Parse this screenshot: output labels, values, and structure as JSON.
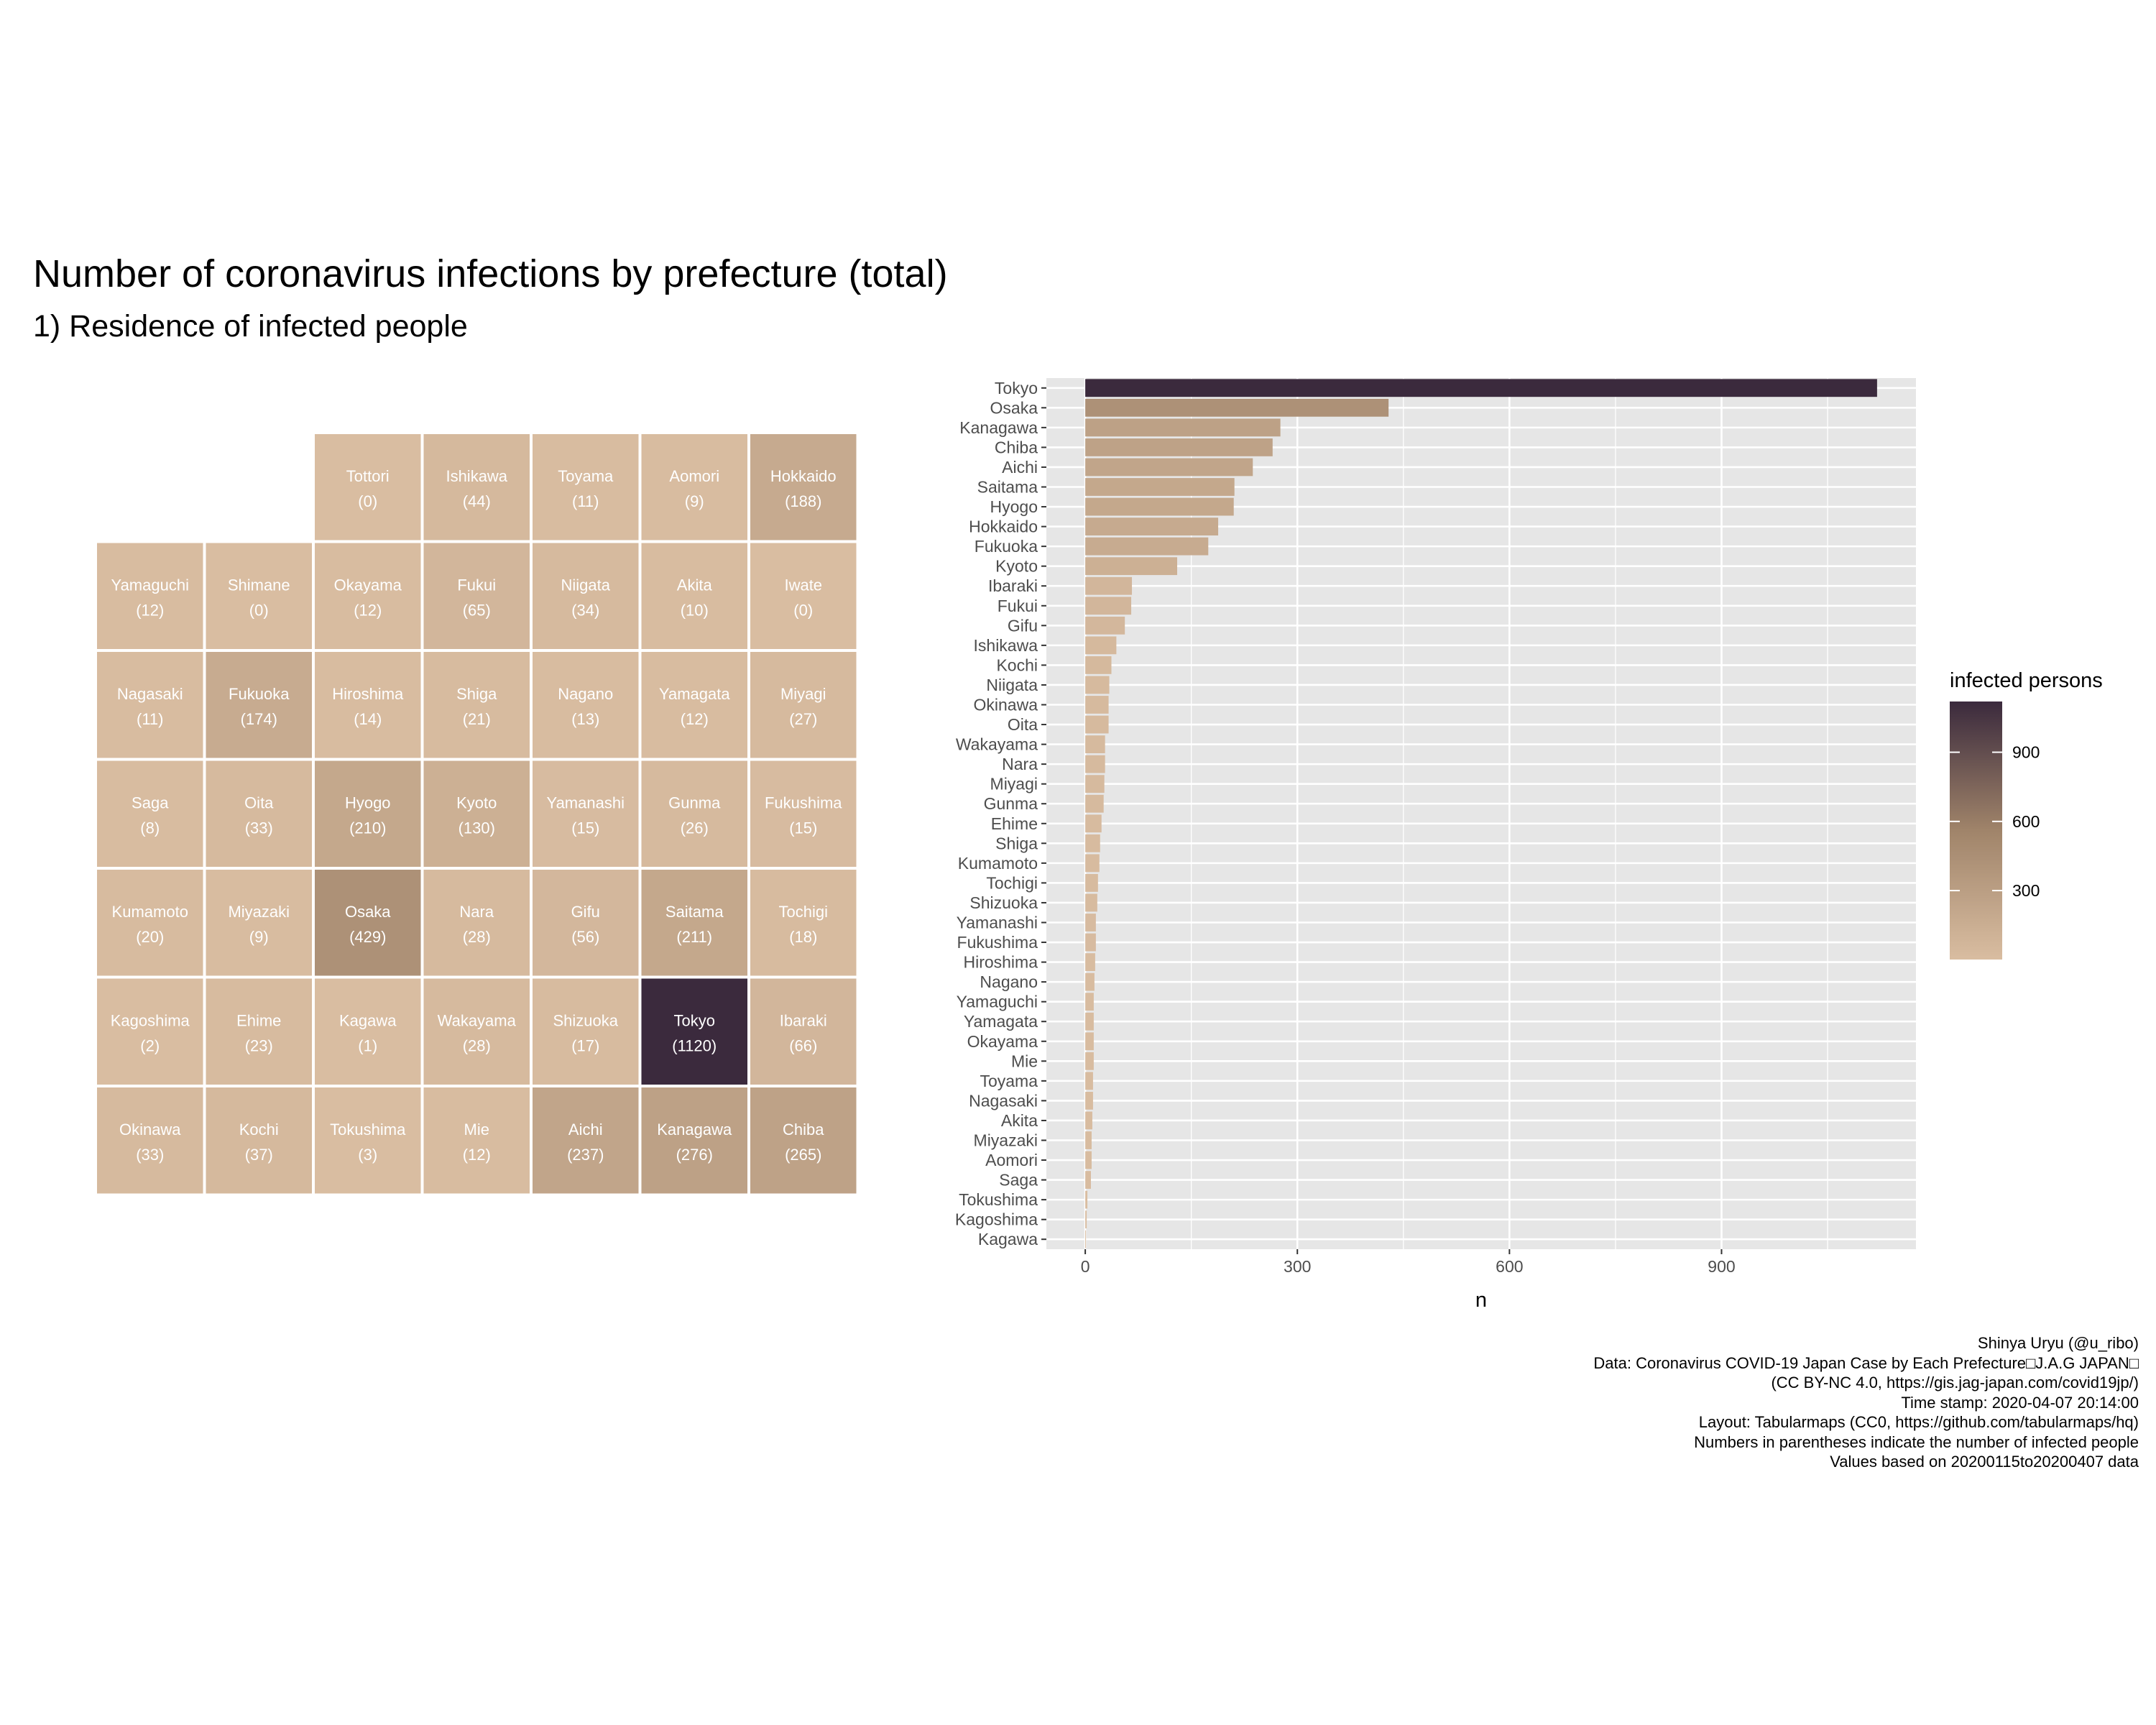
{
  "title": "Number of coronavirus infections by prefecture (total)",
  "subtitle": "1) Residence of infected people",
  "colors": {
    "low": "#d9bda1",
    "mid": "#a0846a",
    "high": "#3b2a3d",
    "panel_bg": "#e6e6e6",
    "grid": "#ffffff"
  },
  "chart_data": [
    {
      "type": "heatmap",
      "layout": "tabular map",
      "tiles": [
        {
          "name": "Tottori",
          "value": 0,
          "row": 0,
          "col": 2
        },
        {
          "name": "Ishikawa",
          "value": 44,
          "row": 0,
          "col": 3
        },
        {
          "name": "Toyama",
          "value": 11,
          "row": 0,
          "col": 4
        },
        {
          "name": "Aomori",
          "value": 9,
          "row": 0,
          "col": 5
        },
        {
          "name": "Hokkaido",
          "value": 188,
          "row": 0,
          "col": 6
        },
        {
          "name": "Yamaguchi",
          "value": 12,
          "row": 1,
          "col": 0
        },
        {
          "name": "Shimane",
          "value": 0,
          "row": 1,
          "col": 1
        },
        {
          "name": "Okayama",
          "value": 12,
          "row": 1,
          "col": 2
        },
        {
          "name": "Fukui",
          "value": 65,
          "row": 1,
          "col": 3
        },
        {
          "name": "Niigata",
          "value": 34,
          "row": 1,
          "col": 4
        },
        {
          "name": "Akita",
          "value": 10,
          "row": 1,
          "col": 5
        },
        {
          "name": "Iwate",
          "value": 0,
          "row": 1,
          "col": 6
        },
        {
          "name": "Nagasaki",
          "value": 11,
          "row": 2,
          "col": 0
        },
        {
          "name": "Fukuoka",
          "value": 174,
          "row": 2,
          "col": 1
        },
        {
          "name": "Hiroshima",
          "value": 14,
          "row": 2,
          "col": 2
        },
        {
          "name": "Shiga",
          "value": 21,
          "row": 2,
          "col": 3
        },
        {
          "name": "Nagano",
          "value": 13,
          "row": 2,
          "col": 4
        },
        {
          "name": "Yamagata",
          "value": 12,
          "row": 2,
          "col": 5
        },
        {
          "name": "Miyagi",
          "value": 27,
          "row": 2,
          "col": 6
        },
        {
          "name": "Saga",
          "value": 8,
          "row": 3,
          "col": 0
        },
        {
          "name": "Oita",
          "value": 33,
          "row": 3,
          "col": 1
        },
        {
          "name": "Hyogo",
          "value": 210,
          "row": 3,
          "col": 2
        },
        {
          "name": "Kyoto",
          "value": 130,
          "row": 3,
          "col": 3
        },
        {
          "name": "Yamanashi",
          "value": 15,
          "row": 3,
          "col": 4
        },
        {
          "name": "Gunma",
          "value": 26,
          "row": 3,
          "col": 5
        },
        {
          "name": "Fukushima",
          "value": 15,
          "row": 3,
          "col": 6
        },
        {
          "name": "Kumamoto",
          "value": 20,
          "row": 4,
          "col": 0
        },
        {
          "name": "Miyazaki",
          "value": 9,
          "row": 4,
          "col": 1
        },
        {
          "name": "Osaka",
          "value": 429,
          "row": 4,
          "col": 2
        },
        {
          "name": "Nara",
          "value": 28,
          "row": 4,
          "col": 3
        },
        {
          "name": "Gifu",
          "value": 56,
          "row": 4,
          "col": 4
        },
        {
          "name": "Saitama",
          "value": 211,
          "row": 4,
          "col": 5
        },
        {
          "name": "Tochigi",
          "value": 18,
          "row": 4,
          "col": 6
        },
        {
          "name": "Kagoshima",
          "value": 2,
          "row": 5,
          "col": 0
        },
        {
          "name": "Ehime",
          "value": 23,
          "row": 5,
          "col": 1
        },
        {
          "name": "Kagawa",
          "value": 1,
          "row": 5,
          "col": 2
        },
        {
          "name": "Wakayama",
          "value": 28,
          "row": 5,
          "col": 3
        },
        {
          "name": "Shizuoka",
          "value": 17,
          "row": 5,
          "col": 4
        },
        {
          "name": "Tokyo",
          "value": 1120,
          "row": 5,
          "col": 5
        },
        {
          "name": "Ibaraki",
          "value": 66,
          "row": 5,
          "col": 6
        },
        {
          "name": "Okinawa",
          "value": 33,
          "row": 6,
          "col": 0
        },
        {
          "name": "Kochi",
          "value": 37,
          "row": 6,
          "col": 1
        },
        {
          "name": "Tokushima",
          "value": 3,
          "row": 6,
          "col": 2
        },
        {
          "name": "Mie",
          "value": 12,
          "row": 6,
          "col": 3
        },
        {
          "name": "Aichi",
          "value": 237,
          "row": 6,
          "col": 4
        },
        {
          "name": "Kanagawa",
          "value": 276,
          "row": 6,
          "col": 5
        },
        {
          "name": "Chiba",
          "value": 265,
          "row": 6,
          "col": 6
        }
      ]
    },
    {
      "type": "bar",
      "orientation": "horizontal",
      "categories": [
        "Tokyo",
        "Osaka",
        "Kanagawa",
        "Chiba",
        "Aichi",
        "Saitama",
        "Hyogo",
        "Hokkaido",
        "Fukuoka",
        "Kyoto",
        "Ibaraki",
        "Fukui",
        "Gifu",
        "Ishikawa",
        "Kochi",
        "Niigata",
        "Okinawa",
        "Oita",
        "Wakayama",
        "Nara",
        "Miyagi",
        "Gunma",
        "Ehime",
        "Shiga",
        "Kumamoto",
        "Tochigi",
        "Shizuoka",
        "Yamanashi",
        "Fukushima",
        "Hiroshima",
        "Nagano",
        "Yamaguchi",
        "Yamagata",
        "Okayama",
        "Mie",
        "Toyama",
        "Nagasaki",
        "Akita",
        "Miyazaki",
        "Aomori",
        "Saga",
        "Tokushima",
        "Kagoshima",
        "Kagawa"
      ],
      "values": [
        1120,
        429,
        276,
        265,
        237,
        211,
        210,
        188,
        174,
        130,
        66,
        65,
        56,
        44,
        37,
        34,
        33,
        33,
        28,
        28,
        27,
        26,
        23,
        21,
        20,
        18,
        17,
        15,
        15,
        14,
        13,
        12,
        12,
        12,
        12,
        11,
        11,
        10,
        9,
        9,
        8,
        3,
        2,
        1
      ],
      "xlabel": "n",
      "ylabel": "",
      "xlim": [
        -55,
        1175
      ],
      "xticks": [
        0,
        300,
        600,
        900
      ],
      "grid": true,
      "legend": {
        "title": "infected persons",
        "placement": "right",
        "ticks": [
          300,
          600,
          900
        ],
        "range": [
          1,
          1120
        ]
      }
    }
  ],
  "caption": [
    "Shinya Uryu (@u_ribo)",
    "Data: Coronavirus COVID-19 Japan Case by Each Prefecture□J.A.G JAPAN□",
    "(CC BY-NC 4.0, https://gis.jag-japan.com/covid19jp/)",
    "Time stamp: 2020-04-07 20:14:00",
    "Layout: Tabularmaps (CC0, https://github.com/tabularmaps/hq)",
    "Numbers in parentheses indicate the number of infected people",
    "Values based on 20200115to20200407 data"
  ]
}
